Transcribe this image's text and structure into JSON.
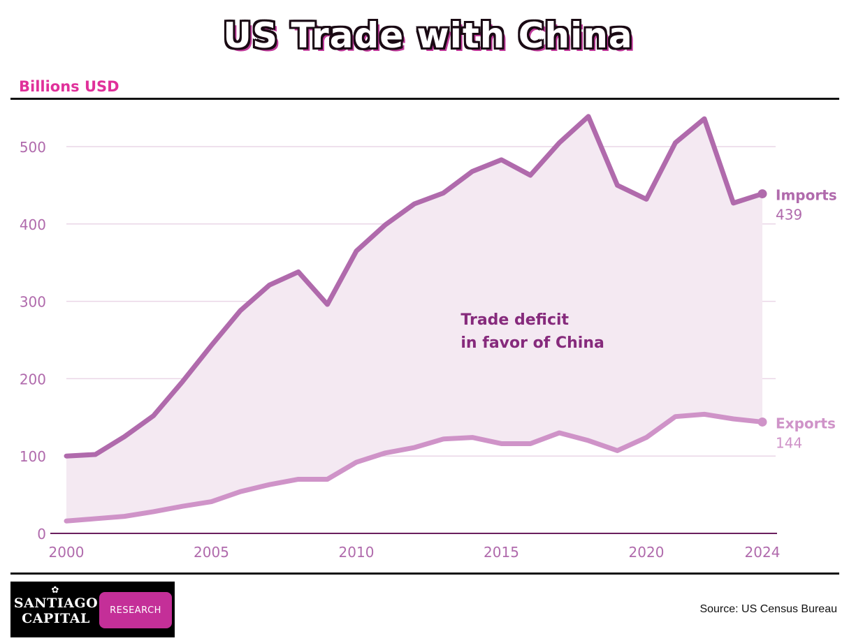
{
  "title": "US Trade with China",
  "units_label": "Billions USD",
  "source": "Source: US Census Bureau",
  "logo": {
    "line1": "SANTIAGO",
    "line2": "CAPITAL",
    "badge": "RESEARCH"
  },
  "colors": {
    "imports": "#b06aac",
    "exports": "#cf93c8",
    "fill": "#f4e9f2",
    "axis_text": "#b06aac",
    "annotation": "#862a7c",
    "grid": "#ead6e7",
    "baseline": "#6a1f5e"
  },
  "chart_data": {
    "type": "line",
    "title": "US Trade with China",
    "ylabel": "Billions USD",
    "xlabel": "",
    "x": [
      2000,
      2001,
      2002,
      2003,
      2004,
      2005,
      2006,
      2007,
      2008,
      2009,
      2010,
      2011,
      2012,
      2013,
      2014,
      2015,
      2016,
      2017,
      2018,
      2019,
      2020,
      2021,
      2022,
      2023,
      2024
    ],
    "series": [
      {
        "name": "Imports",
        "values": [
          100,
          102,
          125,
          152,
          196,
          243,
          288,
          321,
          338,
          296,
          365,
          399,
          426,
          440,
          468,
          483,
          463,
          505,
          539,
          450,
          432,
          505,
          536,
          427,
          439
        ],
        "end_label": "439"
      },
      {
        "name": "Exports",
        "values": [
          16,
          19,
          22,
          28,
          35,
          41,
          54,
          63,
          70,
          70,
          92,
          104,
          111,
          122,
          124,
          116,
          116,
          130,
          120,
          107,
          124,
          151,
          154,
          148,
          144
        ],
        "end_label": "144"
      }
    ],
    "xticks": [
      2000,
      2005,
      2010,
      2015,
      2020,
      2024
    ],
    "yticks": [
      0,
      100,
      200,
      300,
      400,
      500
    ],
    "xlim": [
      2000,
      2024
    ],
    "ylim": [
      0,
      540
    ],
    "grid": true,
    "annotation": {
      "lines": [
        "Trade deficit",
        "in favor of China"
      ],
      "x": 2013.6,
      "y": 270
    }
  }
}
